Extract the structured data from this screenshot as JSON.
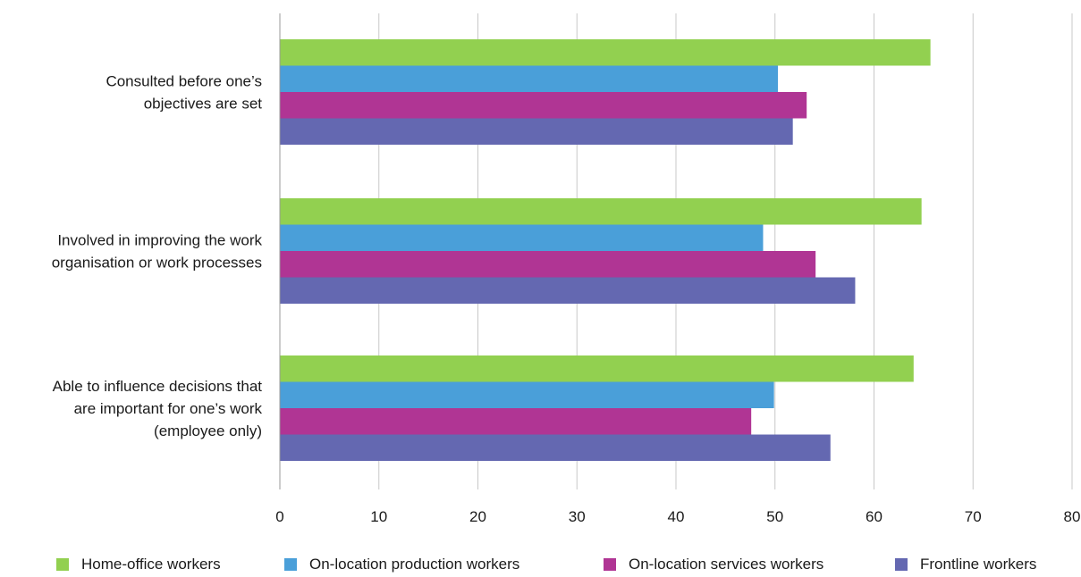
{
  "chart_data": {
    "type": "bar",
    "orientation": "horizontal",
    "categories": [
      [
        "Consulted before one’s",
        "objectives are set"
      ],
      [
        "Involved in improving the work",
        "organisation or work processes"
      ],
      [
        "Able to influence decisions that",
        "are important for one’s work",
        "(employee only)"
      ]
    ],
    "series": [
      {
        "name": "Home-office workers",
        "color": "#92d050",
        "values": [
          65.7,
          64.8,
          64.0
        ]
      },
      {
        "name": "On-location production workers",
        "color": "#4a9fd9",
        "values": [
          50.3,
          48.8,
          49.9
        ]
      },
      {
        "name": "On-location services workers",
        "color": "#b03594",
        "values": [
          53.2,
          54.1,
          47.6
        ]
      },
      {
        "name": "Frontline workers",
        "color": "#6468b1",
        "values": [
          51.8,
          58.1,
          55.6
        ]
      }
    ],
    "xlim": [
      0,
      80
    ],
    "xticks": [
      "0",
      "10",
      "20",
      "30",
      "40",
      "50",
      "60",
      "70",
      "80"
    ],
    "grid": true,
    "legend_position": "bottom",
    "title": "",
    "xlabel": "",
    "ylabel": ""
  }
}
